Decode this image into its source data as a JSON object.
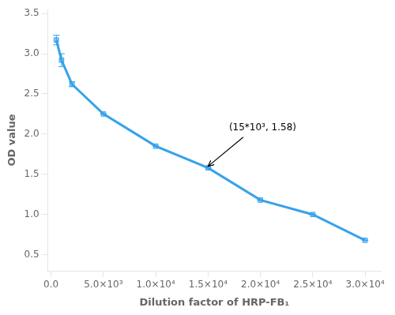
{
  "chart_data": {
    "type": "line",
    "x": [
      500,
      1000,
      2000,
      5000,
      10000,
      15000,
      20000,
      25000,
      30000
    ],
    "values": [
      3.17,
      2.92,
      2.62,
      2.25,
      1.85,
      1.58,
      1.18,
      1.0,
      0.68
    ],
    "yerr": [
      0.06,
      0.08,
      0.03,
      0.0,
      0.0,
      0.0,
      0.0,
      0.0,
      0.0
    ],
    "xlabel": "Dilution factor of HRP-FB₁",
    "ylabel": "OD value",
    "xlim": [
      -300,
      31500
    ],
    "ylim": [
      0.3,
      3.55
    ],
    "xticks": [
      {
        "value": 0,
        "label": "0.0"
      },
      {
        "value": 5000,
        "label": "5.0×10³"
      },
      {
        "value": 10000,
        "label": "1.0×10⁴"
      },
      {
        "value": 15000,
        "label": "1.5×10⁴"
      },
      {
        "value": 20000,
        "label": "2.0×10⁴"
      },
      {
        "value": 25000,
        "label": "2.5×10⁴"
      },
      {
        "value": 30000,
        "label": "3.0×10⁴"
      }
    ],
    "yticks": [
      0.5,
      {
        "value": 1.0,
        "label": "1.0"
      },
      1.5,
      {
        "value": 2.0,
        "label": "2.0"
      },
      2.5,
      {
        "value": 3.0,
        "label": "3.0"
      },
      3.5
    ],
    "marker": "square",
    "line_style": "solid",
    "grid": false,
    "annotations": [
      {
        "text": "(15*10³, 1.58)",
        "x": 17000,
        "y": 2.02,
        "arrow_to": [
          15000,
          1.6
        ]
      }
    ]
  }
}
